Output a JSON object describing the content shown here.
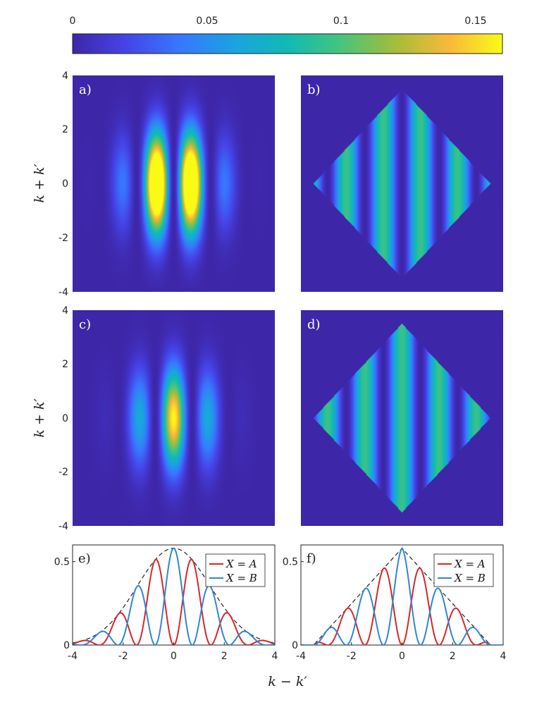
{
  "colorbar": {
    "ticks": [
      {
        "value": 0,
        "label": "0"
      },
      {
        "value": 0.05,
        "label": "0.05"
      },
      {
        "value": 0.1,
        "label": "0.1"
      },
      {
        "value": 0.15,
        "label": "0.15"
      }
    ],
    "range": [
      0,
      0.16
    ],
    "colormap": "parula"
  },
  "colors": {
    "series_A": "#d62728",
    "series_B": "#2f86d6",
    "envelope": "#222222",
    "background_dark": "#3e26a8",
    "panel_label_dark": "#222222",
    "panel_label_light": "#ffffff"
  },
  "axis_labels": {
    "y_top": "k + k′",
    "y_mid": "k + k′",
    "x_bottom": "k − k′"
  },
  "chart_data": [
    {
      "id": "a",
      "label": "a)",
      "type": "heatmap",
      "xlim": [
        -4,
        4
      ],
      "ylim": [
        -4,
        4
      ],
      "yticks": [
        {
          "v": -4,
          "t": "-4"
        },
        {
          "v": -2,
          "t": "-2"
        },
        {
          "v": 0,
          "t": "0"
        },
        {
          "v": 2,
          "t": "2"
        },
        {
          "v": 4,
          "t": "4"
        }
      ],
      "pattern": "smooth Gaussian envelope with sin² fringes along k−k′; maxima ≈0.13 at k−k′ = ±0.7, k+k′ = 0"
    },
    {
      "id": "b",
      "label": "b)",
      "type": "heatmap",
      "xlim": [
        -4,
        4
      ],
      "ylim": [
        -4,
        4
      ],
      "pattern": "diamond |x|+|y| ≤ 3.5 with vertical sin² fringes (zero at x = 0), uniform along k+k′"
    },
    {
      "id": "c",
      "label": "c)",
      "type": "heatmap",
      "xlim": [
        -4,
        4
      ],
      "ylim": [
        -4,
        4
      ],
      "yticks": [
        {
          "v": -4,
          "t": "-4"
        },
        {
          "v": -2,
          "t": "-2"
        },
        {
          "v": 0,
          "t": "0"
        },
        {
          "v": 2,
          "t": "2"
        },
        {
          "v": 4,
          "t": "4"
        }
      ],
      "pattern": "smooth Gaussian envelope with cos² fringes along k−k′; maximum ≈0.16 at k−k′ = 0, k+k′ = 0"
    },
    {
      "id": "d",
      "label": "d)",
      "type": "heatmap",
      "xlim": [
        -4,
        4
      ],
      "ylim": [
        -4,
        4
      ],
      "pattern": "diamond |x|+|y| ≤ 3.5 with vertical cos² fringes (maximum at x = 0), uniform along k+k′"
    },
    {
      "id": "e",
      "label": "e)",
      "type": "line",
      "xlim": [
        -4,
        4
      ],
      "ylim": [
        0,
        0.6
      ],
      "xticks": [
        {
          "v": -4,
          "t": "-4"
        },
        {
          "v": -2,
          "t": "-2"
        },
        {
          "v": 0,
          "t": "0"
        },
        {
          "v": 2,
          "t": "2"
        },
        {
          "v": 4,
          "t": "4"
        }
      ],
      "yticks": [
        {
          "v": 0,
          "t": "0"
        },
        {
          "v": 0.5,
          "t": "0.5"
        }
      ],
      "envelope": {
        "kind": "gaussian",
        "amplitude": 0.58,
        "sigma": 1.45
      },
      "period": 1.47,
      "series": [
        {
          "name": "X = A",
          "color_key": "series_A",
          "phase": "sin²"
        },
        {
          "name": "X = B",
          "color_key": "series_B",
          "phase": "cos²"
        }
      ],
      "legend_position": "top-right"
    },
    {
      "id": "f",
      "label": "f)",
      "type": "line",
      "xlim": [
        -4,
        4
      ],
      "ylim": [
        0,
        0.6
      ],
      "xticks": [
        {
          "v": -4,
          "t": "-4"
        },
        {
          "v": -2,
          "t": "-2"
        },
        {
          "v": 0,
          "t": "0"
        },
        {
          "v": 2,
          "t": "2"
        },
        {
          "v": 4,
          "t": "4"
        }
      ],
      "yticks": [
        {
          "v": 0,
          "t": "0"
        },
        {
          "v": 0.5,
          "t": "0.5"
        }
      ],
      "envelope": {
        "kind": "triangle",
        "amplitude": 0.58,
        "half_width": 3.5
      },
      "period": 1.47,
      "series": [
        {
          "name": "X = A",
          "color_key": "series_A",
          "phase": "sin²"
        },
        {
          "name": "X = B",
          "color_key": "series_B",
          "phase": "cos²"
        }
      ],
      "legend_position": "top-right"
    }
  ]
}
